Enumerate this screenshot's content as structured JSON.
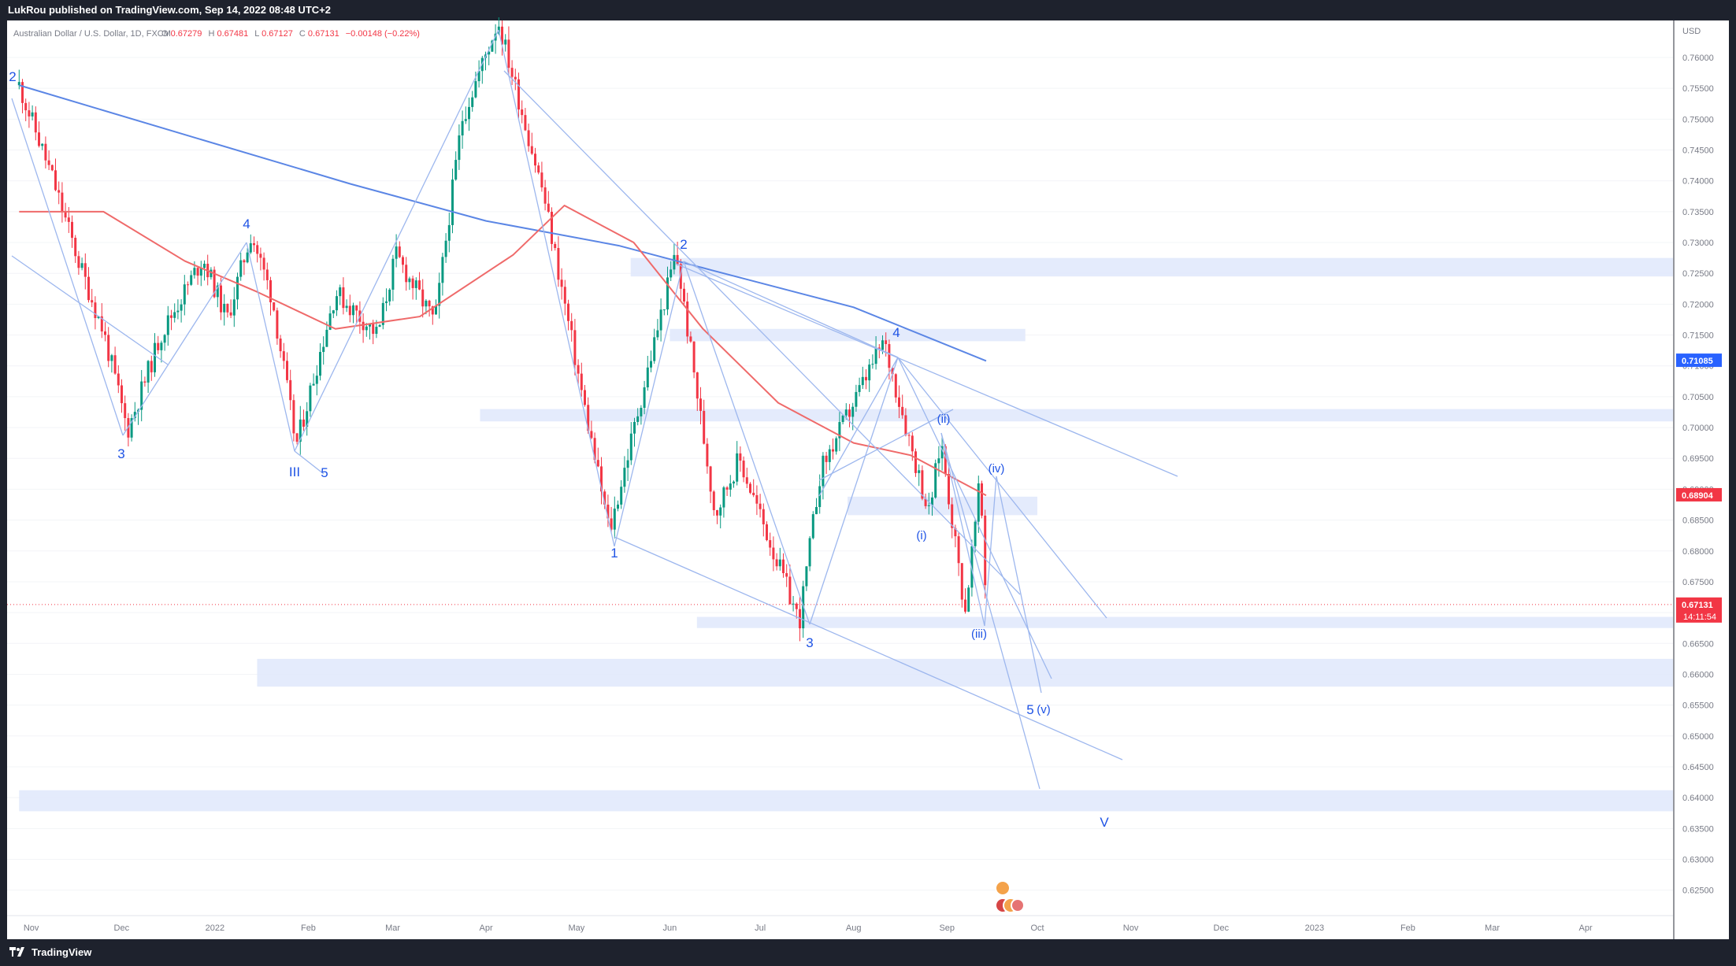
{
  "header": {
    "publisher": "LukRou published on TradingView.com, Sep 14, 2022 08:48 UTC+2"
  },
  "footer": {
    "brand": "TradingView"
  },
  "symbol_info": {
    "name": "Australian Dollar / U.S. Dollar, 1D, FXCM",
    "open_label": "O",
    "open": "0.67279",
    "high_label": "H",
    "high": "0.67481",
    "low_label": "L",
    "low": "0.67127",
    "close_label": "C",
    "close": "0.67131",
    "change": "−0.00148 (−0.22%)"
  },
  "price_axis": {
    "currency": "USD",
    "ticks": [
      "0.76000",
      "0.75500",
      "0.75000",
      "0.74500",
      "0.74000",
      "0.73500",
      "0.73000",
      "0.72500",
      "0.72000",
      "0.71500",
      "0.71000",
      "0.70500",
      "0.70000",
      "0.69500",
      "0.69000",
      "0.68500",
      "0.68000",
      "0.67500",
      "0.67000",
      "0.66500",
      "0.66000",
      "0.65500",
      "0.65000",
      "0.64500",
      "0.64000",
      "0.63500",
      "0.63000",
      "0.62500"
    ],
    "badges": [
      {
        "label": "0.71085",
        "color": "#2962ff"
      },
      {
        "label": "0.68904",
        "color": "#f23645"
      },
      {
        "label": "0.67131",
        "color": "#f23645",
        "sub": "14:11:54"
      }
    ]
  },
  "time_axis": {
    "labels": [
      "Nov",
      "Dec",
      "2022",
      "Feb",
      "Mar",
      "Apr",
      "May",
      "Jun",
      "Jul",
      "Aug",
      "Sep",
      "Oct",
      "Nov",
      "Dec",
      "2023",
      "Feb",
      "Mar",
      "Apr"
    ]
  },
  "wave_labels": [
    "2",
    "3",
    "4",
    "III",
    "5",
    "1",
    "2",
    "3",
    "4",
    "(i)",
    "(ii)",
    "(iii)",
    "(iv)",
    "5",
    "(v)",
    "V"
  ],
  "colors": {
    "bull": "#089981",
    "bear": "#f23645",
    "ma200": "#5b86e5",
    "ma50": "#ef6a6a",
    "zone": "#dfe7fb",
    "lines": "#9db7ee",
    "waves": "#1e53e5"
  },
  "chart_data": {
    "type": "candlestick",
    "title": "Australian Dollar / U.S. Dollar, 1D, FXCM",
    "ylim": [
      0.621,
      0.766
    ],
    "y_unit": "USD",
    "last_price": 0.67131,
    "price_path": [
      [
        "2021-10-28",
        0.7555
      ],
      [
        "2021-11-08",
        0.7405
      ],
      [
        "2021-11-17",
        0.7265
      ],
      [
        "2021-11-25",
        0.7155
      ],
      [
        "2021-12-03",
        0.6995
      ],
      [
        "2021-12-14",
        0.715
      ],
      [
        "2021-12-28",
        0.7275
      ],
      [
        "2022-01-05",
        0.7175
      ],
      [
        "2022-01-13",
        0.7315
      ],
      [
        "2022-01-20",
        0.721
      ],
      [
        "2022-01-28",
        0.697
      ],
      [
        "2022-02-10",
        0.722
      ],
      [
        "2022-02-24",
        0.715
      ],
      [
        "2022-03-02",
        0.728
      ],
      [
        "2022-03-15",
        0.717
      ],
      [
        "2022-03-24",
        0.75
      ],
      [
        "2022-04-05",
        0.766
      ],
      [
        "2022-04-20",
        0.738
      ],
      [
        "2022-05-03",
        0.705
      ],
      [
        "2022-05-12",
        0.683
      ],
      [
        "2022-05-25",
        0.71
      ],
      [
        "2022-06-03",
        0.7285
      ],
      [
        "2022-06-16",
        0.686
      ],
      [
        "2022-06-24",
        0.695
      ],
      [
        "2022-07-14",
        0.6685
      ],
      [
        "2022-07-21",
        0.693
      ],
      [
        "2022-08-11",
        0.714
      ],
      [
        "2022-08-26",
        0.686
      ],
      [
        "2022-08-30",
        0.698
      ],
      [
        "2022-09-07",
        0.67
      ],
      [
        "2022-09-12",
        0.6915
      ],
      [
        "2022-09-14",
        0.6713
      ]
    ],
    "ma200": [
      [
        "2021-10-28",
        0.7555
      ],
      [
        "2021-12-15",
        0.7485
      ],
      [
        "2022-02-15",
        0.7395
      ],
      [
        "2022-04-01",
        0.7335
      ],
      [
        "2022-05-15",
        0.7295
      ],
      [
        "2022-06-15",
        0.7255
      ],
      [
        "2022-08-01",
        0.7195
      ],
      [
        "2022-09-14",
        0.7108
      ]
    ],
    "ma50": [
      [
        "2021-10-28",
        0.735
      ],
      [
        "2021-11-25",
        0.735
      ],
      [
        "2021-12-22",
        0.727
      ],
      [
        "2022-01-15",
        0.722
      ],
      [
        "2022-02-10",
        0.716
      ],
      [
        "2022-03-10",
        0.718
      ],
      [
        "2022-04-10",
        0.728
      ],
      [
        "2022-04-27",
        0.736
      ],
      [
        "2022-05-20",
        0.73
      ],
      [
        "2022-06-12",
        0.716
      ],
      [
        "2022-07-07",
        0.704
      ],
      [
        "2022-08-01",
        0.6975
      ],
      [
        "2022-08-20",
        0.6955
      ],
      [
        "2022-09-14",
        0.689
      ]
    ],
    "zones": [
      {
        "from": "2022-05-19",
        "to": "2023-04-30",
        "low": 0.7245,
        "high": 0.7275
      },
      {
        "from": "2022-06-01",
        "to": "2022-09-27",
        "low": 0.714,
        "high": 0.716
      },
      {
        "from": "2022-03-30",
        "to": "2023-04-30",
        "low": 0.701,
        "high": 0.703
      },
      {
        "from": "2022-07-30",
        "to": "2022-10-01",
        "low": 0.6858,
        "high": 0.6888
      },
      {
        "from": "2022-06-10",
        "to": "2023-04-30",
        "low": 0.6675,
        "high": 0.6693
      },
      {
        "from": "2022-01-15",
        "to": "2023-04-30",
        "low": 0.658,
        "high": 0.6625
      },
      {
        "from": "2021-10-28",
        "to": "2023-04-30",
        "low": 0.6378,
        "high": 0.6412
      }
    ]
  }
}
